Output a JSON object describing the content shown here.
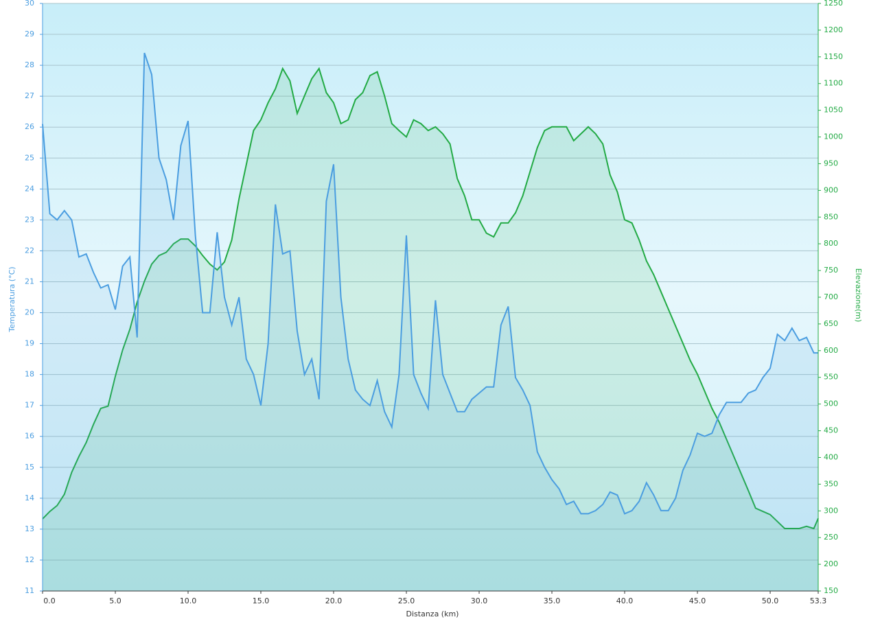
{
  "chart_data": {
    "type": "line",
    "xlabel": "Distanza  (km)",
    "ylabel": "Temperatura (°C)",
    "y2label": "Elevazione(m)",
    "x": [
      0,
      0.5,
      1,
      1.5,
      2,
      2.5,
      3,
      3.5,
      4,
      4.5,
      5,
      5.5,
      6,
      6.5,
      7,
      7.5,
      8,
      8.5,
      9,
      9.5,
      10,
      10.5,
      11,
      11.5,
      12,
      12.5,
      13,
      13.5,
      14,
      14.5,
      15,
      15.5,
      16,
      16.5,
      17,
      17.5,
      18,
      18.5,
      19,
      19.5,
      20,
      20.5,
      21,
      21.5,
      22,
      22.5,
      23,
      23.5,
      24,
      24.5,
      25,
      25.5,
      26,
      26.5,
      27,
      27.5,
      28,
      28.5,
      29,
      29.5,
      30,
      30.5,
      31,
      31.5,
      32,
      32.5,
      33,
      33.5,
      34,
      34.5,
      35,
      35.5,
      36,
      36.5,
      37,
      37.5,
      38,
      38.5,
      39,
      39.5,
      40,
      40.5,
      41,
      41.5,
      42,
      42.5,
      43,
      43.5,
      44,
      44.5,
      45,
      45.5,
      46,
      46.5,
      47,
      47.5,
      48,
      48.5,
      49,
      49.5,
      50,
      50.5,
      51,
      51.5,
      52,
      52.5,
      53,
      53.3
    ],
    "series": [
      {
        "color": "#4a9de0",
        "axis": "y",
        "values": [
          26.1,
          23.2,
          23,
          23.3,
          23,
          21.8,
          21.9,
          21.3,
          20.8,
          20.9,
          20.1,
          21.5,
          21.8,
          19.2,
          28.4,
          27.7,
          25,
          24.3,
          23,
          25.4,
          26.2,
          22.5,
          20,
          20,
          22.6,
          20.5,
          19.6,
          20.5,
          18.5,
          18,
          17,
          19,
          23.5,
          21.9,
          22,
          19.4,
          18,
          18.5,
          17.2,
          23.6,
          24.8,
          20.5,
          18.5,
          17.5,
          17.2,
          17,
          17.8,
          16.8,
          16.3,
          18,
          22.5,
          18,
          17.4,
          16.9,
          20.4,
          18,
          17.4,
          16.8,
          16.8,
          17.2,
          17.4,
          17.6,
          17.6,
          19.6,
          20.2,
          17.9,
          17.5,
          17,
          15.5,
          15,
          14.6,
          14.3,
          13.8,
          13.9,
          13.5,
          13.5,
          13.6,
          13.8,
          14.2,
          14.1,
          13.5,
          13.6,
          13.9,
          14.5,
          14.1,
          13.6,
          13.6,
          14,
          14.9,
          15.4,
          16.1,
          16,
          16.1,
          16.7,
          17.1,
          17.1,
          17.1,
          17.4,
          17.5,
          17.9,
          18.2,
          19.3,
          19.1,
          19.5,
          19.1,
          19.2,
          18.7,
          18.7
        ]
      },
      {
        "color": "#22aa44",
        "axis": "y2",
        "values": [
          285,
          299,
          310,
          331,
          372,
          402,
          428,
          462,
          492,
          496,
          552,
          601,
          640,
          691,
          730,
          762,
          778,
          784,
          800,
          809,
          809,
          796,
          778,
          762,
          751,
          766,
          807,
          884,
          948,
          1012,
          1032,
          1064,
          1090,
          1128,
          1105,
          1044,
          1077,
          1109,
          1128,
          1083,
          1064,
          1025,
          1032,
          1070,
          1083,
          1115,
          1122,
          1077,
          1025,
          1012,
          1000,
          1032,
          1025,
          1012,
          1019,
          1006,
          987,
          922,
          890,
          845,
          845,
          820,
          813,
          839,
          839,
          858,
          890,
          935,
          980,
          1012,
          1019,
          1019,
          1019,
          993,
          1006,
          1019,
          1006,
          987,
          929,
          897,
          845,
          839,
          807,
          768,
          742,
          710,
          678,
          646,
          614,
          582,
          556,
          524,
          492,
          466,
          434,
          402,
          370,
          338,
          305,
          299,
          293,
          280,
          267,
          267,
          267,
          271,
          267,
          286
        ]
      }
    ],
    "xlim": [
      0,
      53.3
    ],
    "xticks": [
      {
        "value": 0,
        "label": "0.0"
      },
      {
        "value": 5,
        "label": "5.0"
      },
      {
        "value": 10,
        "label": "10.0"
      },
      {
        "value": 15,
        "label": "15.0"
      },
      {
        "value": 20,
        "label": "20.0"
      },
      {
        "value": 25,
        "label": "25.0"
      },
      {
        "value": 30,
        "label": "30.0"
      },
      {
        "value": 35,
        "label": "35.0"
      },
      {
        "value": 40,
        "label": "40.0"
      },
      {
        "value": 45,
        "label": "45.0"
      },
      {
        "value": 50,
        "label": "50.0"
      },
      53.3
    ],
    "ylim": [
      11,
      30
    ],
    "yticks": [
      11,
      12,
      13,
      14,
      15,
      16,
      17,
      18,
      19,
      20,
      21,
      22,
      23,
      24,
      25,
      26,
      27,
      28,
      29,
      30
    ],
    "y2lim": [
      150,
      1250
    ],
    "y2ticks": [
      150,
      200,
      250,
      300,
      350,
      400,
      450,
      500,
      550,
      600,
      650,
      700,
      750,
      800,
      850,
      900,
      950,
      1000,
      1050,
      1100,
      1150,
      1200,
      1250
    ],
    "grid": true
  }
}
